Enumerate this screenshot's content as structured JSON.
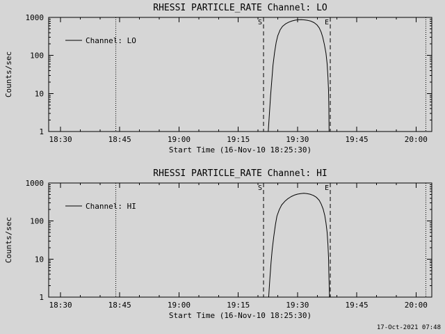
{
  "page": {
    "background": "#d6d6d6",
    "line_color": "#000000",
    "timestamp": "17-Oct-2021 07:48"
  },
  "chart_data": [
    {
      "type": "line",
      "title": "RHESSI PARTICLE_RATE Channel: LO",
      "xlabel": "Start Time (16-Nov-10 18:25:30)",
      "ylabel": "Counts/sec",
      "legend_label": "Channel: LO",
      "grid": false,
      "x_axis": {
        "unit": "minutes-since-18:00",
        "range": [
          27,
          124
        ],
        "major_ticks": [
          {
            "value": 30,
            "label": "18:30"
          },
          {
            "value": 45,
            "label": "18:45"
          },
          {
            "value": 60,
            "label": "19:00"
          },
          {
            "value": 75,
            "label": "19:15"
          },
          {
            "value": 90,
            "label": "19:30"
          },
          {
            "value": 105,
            "label": "19:45"
          },
          {
            "value": 120,
            "label": "20:00"
          }
        ],
        "minor_tick_step": 5
      },
      "y_axis": {
        "scale": "log",
        "range": [
          1,
          1000
        ],
        "major_ticks": [
          {
            "value": 1,
            "label": "1"
          },
          {
            "value": 10,
            "label": "10"
          },
          {
            "value": 100,
            "label": "100"
          },
          {
            "value": 1000,
            "label": "1000"
          }
        ]
      },
      "markers": [
        {
          "pos": 44,
          "style": "dotted",
          "label": ""
        },
        {
          "pos": 81.4,
          "style": "dashed",
          "label": "S"
        },
        {
          "pos": 98.3,
          "style": "dashed",
          "label": "E"
        },
        {
          "pos": 122.5,
          "style": "dotted",
          "label": ""
        }
      ],
      "series": [
        {
          "name": "Channel: LO",
          "points": [
            [
              82.6,
              1
            ],
            [
              82.9,
              3
            ],
            [
              83.2,
              9
            ],
            [
              83.5,
              22
            ],
            [
              83.8,
              55
            ],
            [
              84.2,
              120
            ],
            [
              84.6,
              220
            ],
            [
              85.0,
              330
            ],
            [
              85.6,
              470
            ],
            [
              86.2,
              580
            ],
            [
              87.0,
              680
            ],
            [
              87.8,
              750
            ],
            [
              88.6,
              805
            ],
            [
              89.4,
              845
            ],
            [
              90.2,
              868
            ],
            [
              91.0,
              872
            ],
            [
              91.8,
              860
            ],
            [
              92.6,
              835
            ],
            [
              93.4,
              795
            ],
            [
              94.2,
              730
            ],
            [
              94.9,
              640
            ],
            [
              95.5,
              530
            ],
            [
              96.0,
              410
            ],
            [
              96.4,
              300
            ],
            [
              96.8,
              195
            ],
            [
              97.2,
              115
            ],
            [
              97.5,
              60
            ],
            [
              97.7,
              28
            ],
            [
              97.85,
              12
            ],
            [
              97.95,
              4
            ],
            [
              98.0,
              1
            ]
          ]
        }
      ]
    },
    {
      "type": "line",
      "title": "RHESSI PARTICLE_RATE Channel: HI",
      "xlabel": "Start Time (16-Nov-10 18:25:30)",
      "ylabel": "Counts/sec",
      "legend_label": "Channel: HI",
      "grid": false,
      "x_axis": {
        "unit": "minutes-since-18:00",
        "range": [
          27,
          124
        ],
        "major_ticks": [
          {
            "value": 30,
            "label": "18:30"
          },
          {
            "value": 45,
            "label": "18:45"
          },
          {
            "value": 60,
            "label": "19:00"
          },
          {
            "value": 75,
            "label": "19:15"
          },
          {
            "value": 90,
            "label": "19:30"
          },
          {
            "value": 105,
            "label": "19:45"
          },
          {
            "value": 120,
            "label": "20:00"
          }
        ],
        "minor_tick_step": 5
      },
      "y_axis": {
        "scale": "log",
        "range": [
          1,
          1000
        ],
        "major_ticks": [
          {
            "value": 1,
            "label": "1"
          },
          {
            "value": 10,
            "label": "10"
          },
          {
            "value": 100,
            "label": "100"
          },
          {
            "value": 1000,
            "label": "1000"
          }
        ]
      },
      "markers": [
        {
          "pos": 44,
          "style": "dotted",
          "label": ""
        },
        {
          "pos": 81.4,
          "style": "dashed",
          "label": "S"
        },
        {
          "pos": 98.3,
          "style": "dashed",
          "label": "E"
        },
        {
          "pos": 122.5,
          "style": "dotted",
          "label": ""
        }
      ],
      "series": [
        {
          "name": "Channel: HI",
          "points": [
            [
              82.7,
              1
            ],
            [
              83.0,
              3
            ],
            [
              83.3,
              8
            ],
            [
              83.6,
              18
            ],
            [
              84.0,
              40
            ],
            [
              84.4,
              80
            ],
            [
              84.8,
              135
            ],
            [
              85.4,
              200
            ],
            [
              86.0,
              265
            ],
            [
              86.8,
              330
            ],
            [
              87.6,
              390
            ],
            [
              88.4,
              440
            ],
            [
              89.2,
              480
            ],
            [
              90.0,
              510
            ],
            [
              90.8,
              528
            ],
            [
              91.6,
              535
            ],
            [
              92.4,
              528
            ],
            [
              93.2,
              508
            ],
            [
              94.0,
              472
            ],
            [
              94.8,
              420
            ],
            [
              95.5,
              350
            ],
            [
              96.0,
              280
            ],
            [
              96.5,
              205
            ],
            [
              96.9,
              140
            ],
            [
              97.2,
              90
            ],
            [
              97.5,
              50
            ],
            [
              97.7,
              25
            ],
            [
              97.85,
              11
            ],
            [
              97.95,
              4
            ],
            [
              98.1,
              1
            ]
          ]
        }
      ]
    }
  ]
}
